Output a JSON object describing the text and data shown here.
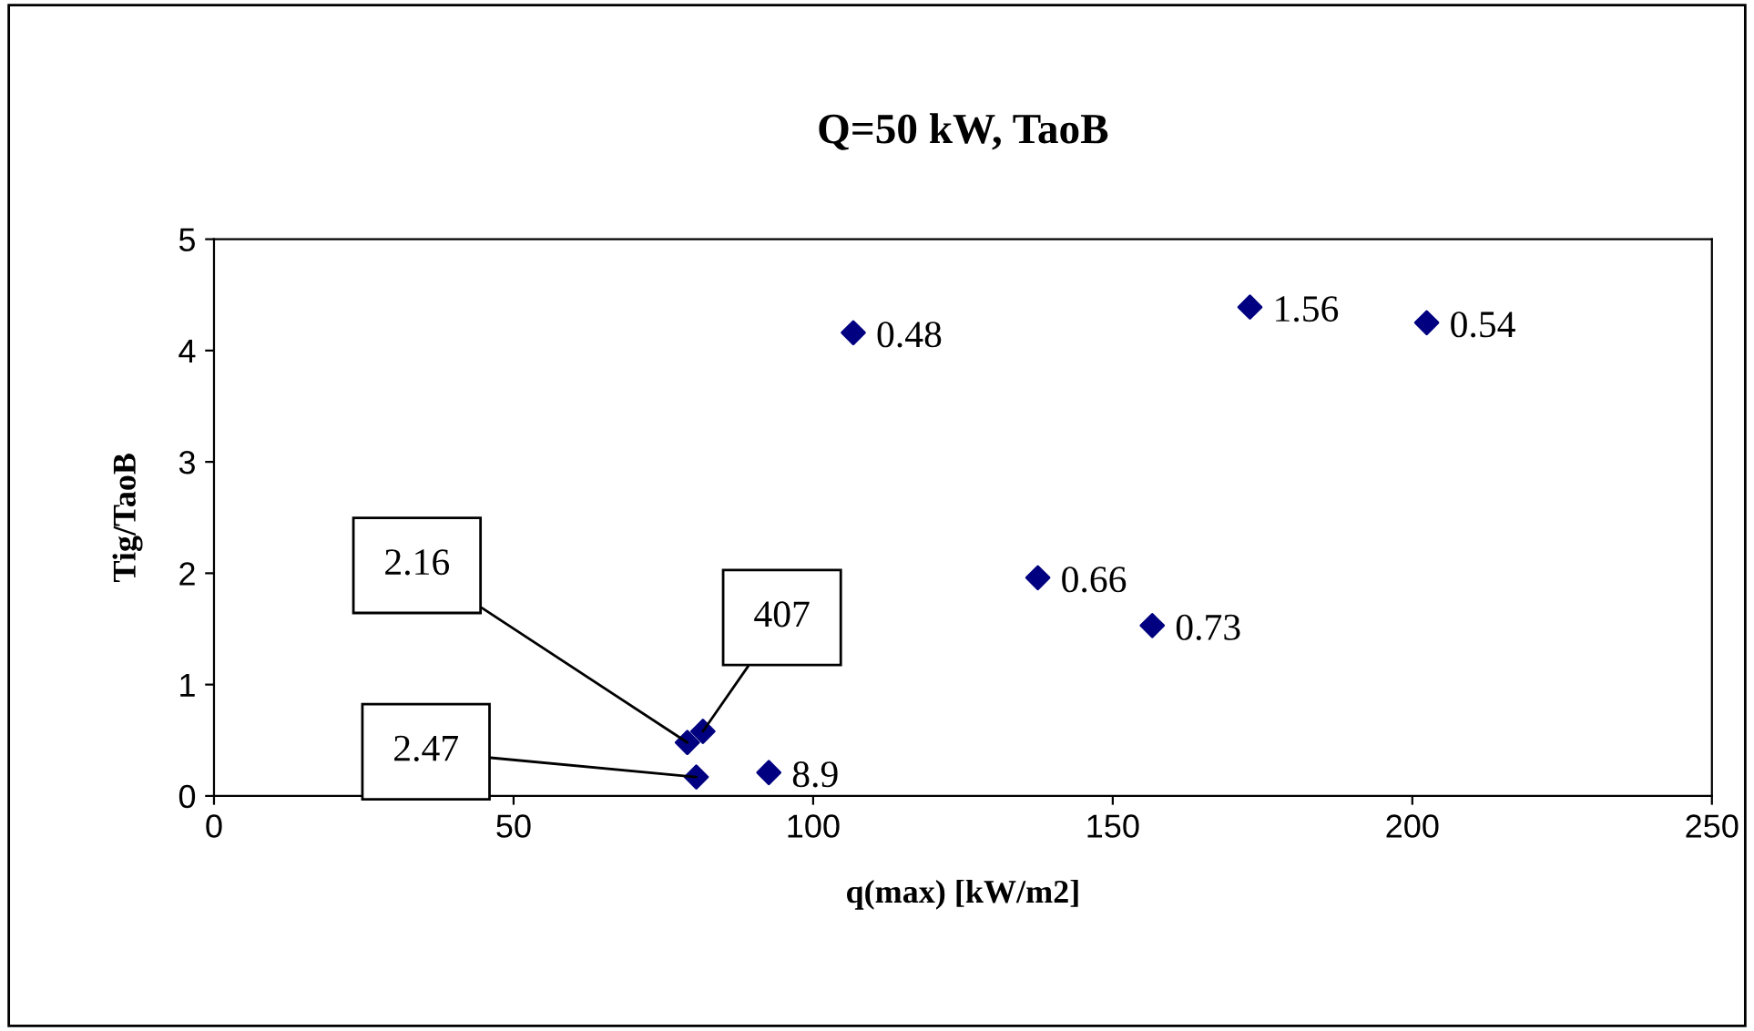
{
  "chart_data": {
    "type": "scatter",
    "title": "Q=50 kW, TaoB",
    "xlabel": "q(max) [kW/m2]",
    "ylabel": "Tig/TaoB",
    "x": [
      106.7,
      172.9,
      202.4,
      137.5,
      156.6,
      92.6,
      80.5,
      79.0,
      81.6
    ],
    "values": [
      4.16,
      4.39,
      4.25,
      1.96,
      1.53,
      0.21,
      0.17,
      0.48,
      0.58
    ],
    "annotations": [
      {
        "text": "0.48",
        "x": 106.7,
        "y": 4.16
      },
      {
        "text": "1.56",
        "x": 172.9,
        "y": 4.39
      },
      {
        "text": "0.54",
        "x": 202.4,
        "y": 4.25
      },
      {
        "text": "0.66",
        "x": 137.5,
        "y": 1.96
      },
      {
        "text": "0.73",
        "x": 156.6,
        "y": 1.53
      },
      {
        "text": "8.9",
        "x": 92.6,
        "y": 0.21
      },
      {
        "text": "2.47",
        "x": 80.5,
        "y": 0.17
      },
      {
        "text": "2.16",
        "x": 79.0,
        "y": 0.48
      },
      {
        "text": "407",
        "x": 81.6,
        "y": 0.58
      }
    ],
    "color": "#000080",
    "marker": "diamond",
    "xlim": [
      0,
      250
    ],
    "ylim": [
      0,
      5
    ],
    "xticks": [
      0,
      50,
      100,
      150,
      200,
      250
    ],
    "yticks": [
      0,
      1,
      2,
      3,
      4,
      5
    ],
    "grid": false,
    "legend": false
  }
}
